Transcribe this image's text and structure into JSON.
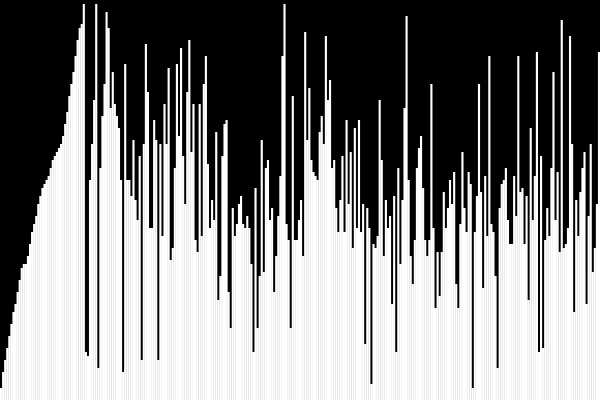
{
  "colors": {
    "background": "#000000",
    "bar": "#ffffff"
  },
  "bar_data": {
    "description_of_encoding": "",
    "levels": [
      0.03,
      0.07,
      0.1,
      0.13,
      0.16,
      0.19,
      0.22,
      0.24,
      0.27,
      0.3,
      0.33,
      0.34,
      0.34,
      0.36,
      0.39,
      0.42,
      0.44,
      0.46,
      0.49,
      0.51,
      0.53,
      0.54,
      0.55,
      0.56,
      0.58,
      0.6,
      0.61,
      0.62,
      0.63,
      0.64,
      0.66,
      0.69,
      0.72,
      0.76,
      0.79,
      0.82,
      0.86,
      0.9,
      0.93,
      0.94,
      0.99,
      0.12,
      0.11,
      0.55,
      0.64,
      0.75,
      0.99,
      0.08,
      0.58,
      0.71,
      0.79,
      0.97,
      0.93,
      0.73,
      0.82,
      0.74,
      0.71,
      0.68,
      0.55,
      0.07,
      0.84,
      0.55,
      0.55,
      0.51,
      0.65,
      0.5,
      0.45,
      0.61,
      0.1,
      0.64,
      0.89,
      0.77,
      0.43,
      0.43,
      0.7,
      0.65,
      0.1,
      0.64,
      0.41,
      0.74,
      0.64,
      0.83,
      0.35,
      0.38,
      0.58,
      0.84,
      0.66,
      0.88,
      0.61,
      0.49,
      0.77,
      0.9,
      0.62,
      0.74,
      0.4,
      0.37,
      0.74,
      0.41,
      0.79,
      0.86,
      0.59,
      0.43,
      0.5,
      0.45,
      0.67,
      0.25,
      0.31,
      0.61,
      0.69,
      0.7,
      0.27,
      0.18,
      0.48,
      0.41,
      0.44,
      0.49,
      0.51,
      0.44,
      0.43,
      0.46,
      0.43,
      0.34,
      0.12,
      0.53,
      0.18,
      0.31,
      0.65,
      0.32,
      0.58,
      0.6,
      0.45,
      0.48,
      0.27,
      0.36,
      0.46,
      0.56,
      0.86,
      0.99,
      0.44,
      0.4,
      0.18,
      0.76,
      0.4,
      0.4,
      0.45,
      0.5,
      0.36,
      0.92,
      0.65,
      0.78,
      0.6,
      0.57,
      0.56,
      0.55,
      0.67,
      0.71,
      0.64,
      0.91,
      0.75,
      0.8,
      0.58,
      0.6,
      0.48,
      0.42,
      0.5,
      0.61,
      0.42,
      0.7,
      0.49,
      0.62,
      0.38,
      0.68,
      0.43,
      0.7,
      0.42,
      0.49,
      0.14,
      0.48,
      0.43,
      0.04,
      0.39,
      0.38,
      0.41,
      0.75,
      0.6,
      0.36,
      0.5,
      0.43,
      0.46,
      0.24,
      0.51,
      0.12,
      0.58,
      0.34,
      0.5,
      0.73,
      0.96,
      0.55,
      0.36,
      0.29,
      0.4,
      0.58,
      0.63,
      0.66,
      0.53,
      0.4,
      0.36,
      0.4,
      0.79,
      0.43,
      0.23,
      0.37,
      0.26,
      0.37,
      0.52,
      0.43,
      0.48,
      0.55,
      0.49,
      0.57,
      0.29,
      0.23,
      0.44,
      0.62,
      0.48,
      0.42,
      0.57,
      0.54,
      0.03,
      0.42,
      0.51,
      0.79,
      0.52,
      0.28,
      0.56,
      0.41,
      0.86,
      0.44,
      0.42,
      0.31,
      0.08,
      0.48,
      0.54,
      0.55,
      0.58,
      0.45,
      0.39,
      0.39,
      0.56,
      0.46,
      0.86,
      0.52,
      0.53,
      0.39,
      0.51,
      0.25,
      0.68,
      0.45,
      0.56,
      0.87,
      0.12,
      0.61,
      0.13,
      0.4,
      0.48,
      0.41,
      0.58,
      0.82,
      0.45,
      0.57,
      0.37,
      0.95,
      0.38,
      0.39,
      0.43,
      0.91,
      0.64,
      0.22,
      0.5,
      0.41,
      0.52,
      0.58,
      0.62,
      0.24,
      0.46,
      0.64,
      0.32,
      0.38,
      0.49,
      0.87
    ]
  }
}
